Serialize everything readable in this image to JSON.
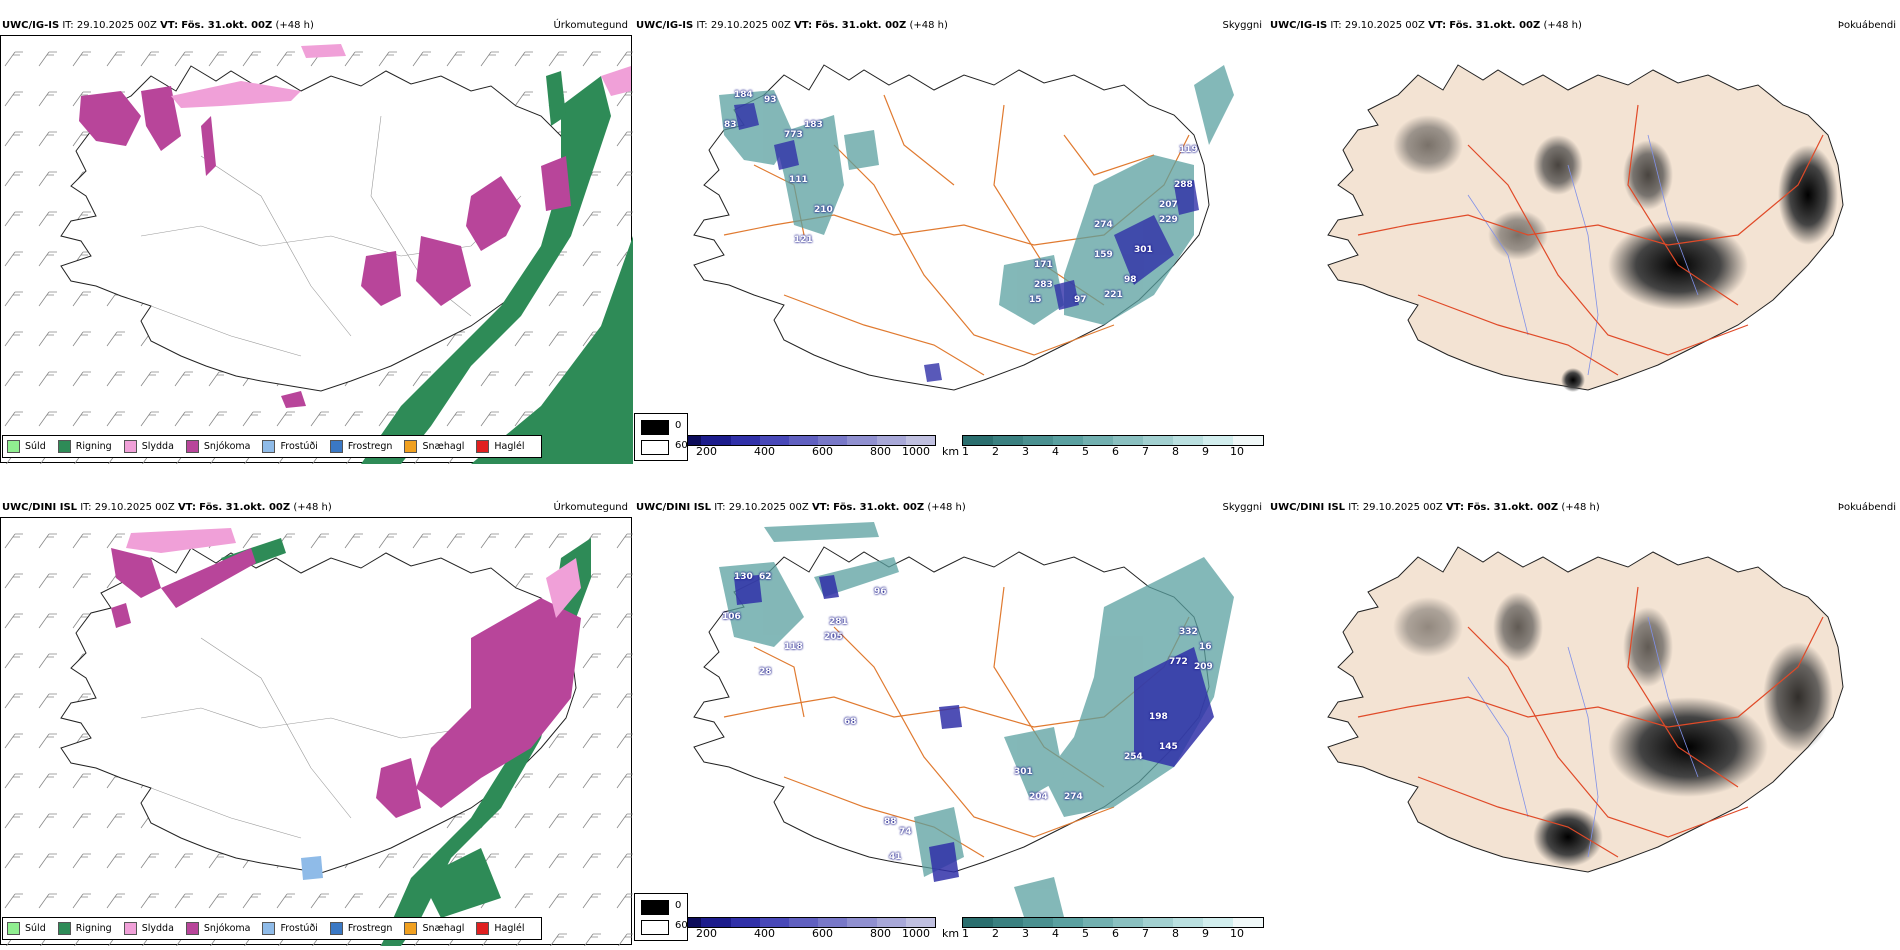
{
  "panels": {
    "p1": {
      "model": "UWC/IG-IS",
      "it_label": "IT:",
      "it_value": "29.10.2025 00Z",
      "vt_label": "VT:",
      "vt_value": "Fös. 31.okt. 00Z",
      "lead": "(+48 h)",
      "title": "Úrkomutegund"
    },
    "p2": {
      "model": "UWC/IG-IS",
      "it_label": "IT:",
      "it_value": "29.10.2025 00Z",
      "vt_label": "VT:",
      "vt_value": "Fös. 31.okt. 00Z",
      "lead": "(+48 h)",
      "title": "Skyggni"
    },
    "p3": {
      "model": "UWC/IG-IS",
      "it_label": "IT:",
      "it_value": "29.10.2025 00Z",
      "vt_label": "VT:",
      "vt_value": "Fös. 31.okt. 00Z",
      "lead": "(+48 h)",
      "title": "Þokuábendi"
    },
    "p4": {
      "model": "UWC/DINI ISL",
      "it_label": "IT:",
      "it_value": "29.10.2025 00Z",
      "vt_label": "VT:",
      "vt_value": "Fös. 31.okt. 00Z",
      "lead": "(+48 h)",
      "title": "Úrkomutegund"
    },
    "p5": {
      "model": "UWC/DINI ISL",
      "it_label": "IT:",
      "it_value": "29.10.2025 00Z",
      "vt_label": "VT:",
      "vt_value": "Fös. 31.okt. 00Z",
      "lead": "(+48 h)",
      "title": "Skyggni"
    },
    "p6": {
      "model": "UWC/DINI ISL",
      "it_label": "IT:",
      "it_value": "29.10.2025 00Z",
      "vt_label": "VT:",
      "vt_value": "Fös. 31.okt. 00Z",
      "lead": "(+48 h)",
      "title": "Þokuábendi"
    }
  },
  "precip_legend": [
    {
      "label": "Súld",
      "color": "#90ee90"
    },
    {
      "label": "Rigning",
      "color": "#2e8b57"
    },
    {
      "label": "Slydda",
      "color": "#f0a0d8"
    },
    {
      "label": "Snjókoma",
      "color": "#b8459a"
    },
    {
      "label": "Frostúði",
      "color": "#8fbbe8"
    },
    {
      "label": "Frostregn",
      "color": "#3a78c4"
    },
    {
      "label": "Snæhagl",
      "color": "#f0a020"
    },
    {
      "label": "Haglél",
      "color": "#e02020"
    }
  ],
  "visibility_scale_m": {
    "unit": "m",
    "ticks": [
      "0",
      "200",
      "400",
      "600",
      "800",
      "1000"
    ],
    "colors": [
      "#000000",
      "#0c0c5a",
      "#1c1c8c",
      "#3030a8",
      "#4848b8",
      "#6060c0",
      "#7878c8",
      "#9090d0",
      "#a8a8d8",
      "#c0c0e0"
    ]
  },
  "visibility_scale_km": {
    "unit": "km",
    "ticks": [
      "1",
      "2",
      "3",
      "4",
      "5",
      "6",
      "7",
      "8",
      "9",
      "10"
    ],
    "colors": [
      "#2a6e6e",
      "#3a8080",
      "#4a9090",
      "#5aa0a0",
      "#72b0b0",
      "#8ac0c0",
      "#a2d0d0",
      "#bae0e0",
      "#d2eeee",
      "#f0f8f8"
    ]
  },
  "fog_legend": [
    {
      "label": "0",
      "color": "#000000"
    },
    {
      "label": "60",
      "color": "#ffffff"
    }
  ],
  "colors": {
    "land_fog": "#f3e3d3",
    "roads": "#e07a30",
    "roads_fog": "#e04a28",
    "rivers": "#8090e8",
    "coast": "#222222",
    "rain": "#2e8b57",
    "snow": "#b8459a",
    "sleet": "#f0a0d8",
    "vis_teal": "#4a9a9a",
    "vis_blue": "#3030a8"
  },
  "visibility_labels_top": [
    "184",
    "93",
    "83",
    "773",
    "183",
    "210",
    "121",
    "111",
    "274",
    "159",
    "301",
    "97",
    "221",
    "171",
    "283",
    "229",
    "207",
    "288",
    "119",
    "98",
    "15"
  ],
  "visibility_labels_bottom": [
    "130",
    "62",
    "106",
    "205",
    "281",
    "118",
    "28",
    "96",
    "68",
    "332",
    "772",
    "209",
    "16",
    "198",
    "254",
    "145",
    "274",
    "204",
    "301",
    "74",
    "41",
    "88"
  ]
}
